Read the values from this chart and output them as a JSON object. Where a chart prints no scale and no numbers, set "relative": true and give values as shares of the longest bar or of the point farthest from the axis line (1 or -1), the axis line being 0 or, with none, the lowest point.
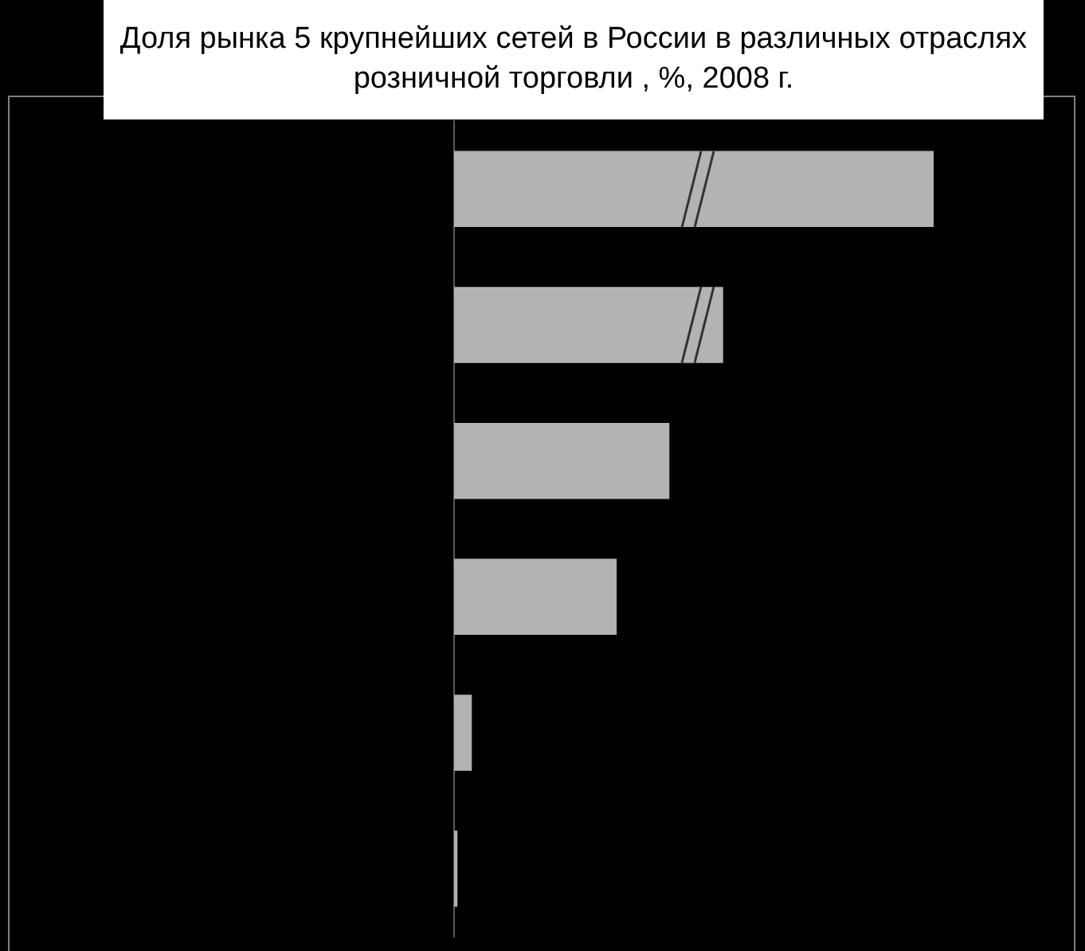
{
  "chart_data": {
    "type": "bar",
    "title": "Доля рынка 5 крупнейших сетей в России в различных отраслях розничной торговли , %, 2008 г.",
    "orientation": "horizontal",
    "relative": true,
    "categories": [
      null,
      null,
      null,
      null,
      null,
      null
    ],
    "values": [
      1,
      0.561,
      0.449,
      0.339,
      0.037,
      0.007
    ],
    "color": "#b3b3b3"
  }
}
